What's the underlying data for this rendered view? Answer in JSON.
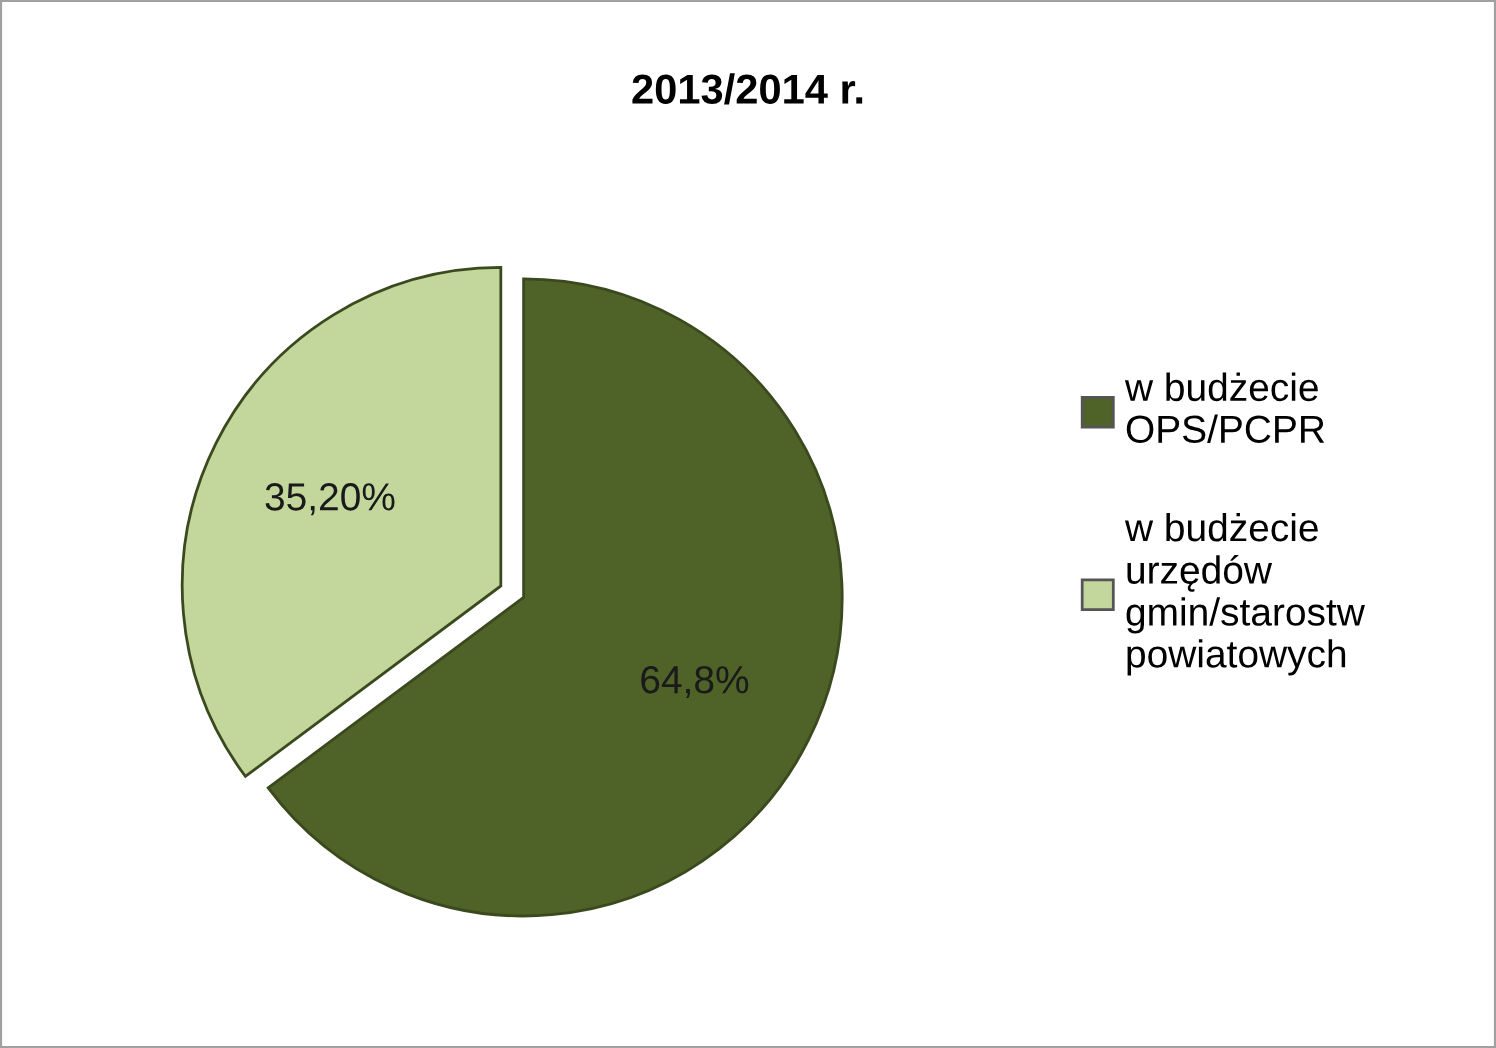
{
  "chart_data": {
    "type": "pie",
    "title": "2013/2014 r.",
    "categories": [
      "w budżecie OPS/PCPR",
      "w budżecie urzędów gmin/starostw powiatowych"
    ],
    "values": [
      64.8,
      35.2
    ],
    "value_labels": [
      "64,8%",
      "35,20%"
    ],
    "colors": [
      "#4f6228",
      "#c3d69b"
    ],
    "legend": "right"
  }
}
